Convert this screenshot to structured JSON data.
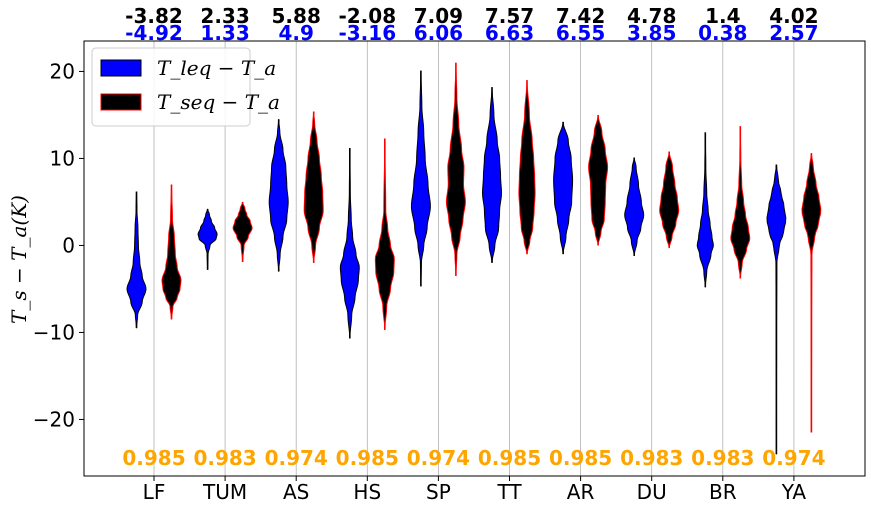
{
  "chart_data": {
    "type": "violin",
    "title": "",
    "xlabel": "",
    "ylabel": "T_s − T_a(K)",
    "ylim": [
      -26.5,
      23.5
    ],
    "yticks": [
      -20,
      -10,
      0,
      10,
      20
    ],
    "grid": "vertical",
    "legend_position": "top-left",
    "categories": [
      "LF",
      "TUM",
      "AS",
      "HS",
      "SP",
      "TT",
      "AR",
      "DU",
      "BR",
      "YA"
    ],
    "series": [
      {
        "name": "T_leq − T_a",
        "color": "#0000ff",
        "edge_color": "#000000",
        "line_color": "#000000",
        "mean_labels": [
          "-3.82",
          "2.33",
          "5.88",
          "-2.08",
          "7.09",
          "7.57",
          "7.42",
          "4.78",
          "1.4",
          "4.02"
        ],
        "label_color": "#000000",
        "distributions": [
          {
            "min": -9.5,
            "max": 6.2,
            "profile": [
              [
                -9.5,
                0
              ],
              [
                -8,
                0.12
              ],
              [
                -6.5,
                0.6
              ],
              [
                -5,
                1
              ],
              [
                -3.5,
                0.6
              ],
              [
                -2,
                0.35
              ],
              [
                0,
                0.2
              ],
              [
                2,
                0.15
              ],
              [
                4,
                0.05
              ],
              [
                6.2,
                0
              ]
            ]
          },
          {
            "min": -2.8,
            "max": 4.2,
            "profile": [
              [
                -2.8,
                0
              ],
              [
                -1,
                0.05
              ],
              [
                0,
                0.25
              ],
              [
                0.8,
                0.9
              ],
              [
                1.3,
                1
              ],
              [
                2,
                0.75
              ],
              [
                2.8,
                0.4
              ],
              [
                3.5,
                0.2
              ],
              [
                4.2,
                0
              ]
            ]
          },
          {
            "min": -3,
            "max": 14.5,
            "profile": [
              [
                -3,
                0
              ],
              [
                -1,
                0.15
              ],
              [
                1,
                0.45
              ],
              [
                3,
                0.85
              ],
              [
                5,
                1
              ],
              [
                7,
                0.85
              ],
              [
                9,
                0.75
              ],
              [
                11,
                0.45
              ],
              [
                13,
                0.12
              ],
              [
                14.5,
                0
              ]
            ]
          },
          {
            "min": -10.7,
            "max": 11.2,
            "profile": [
              [
                -10.7,
                0
              ],
              [
                -8,
                0.2
              ],
              [
                -6,
                0.55
              ],
              [
                -4,
                0.9
              ],
              [
                -2.5,
                1
              ],
              [
                -1,
                0.65
              ],
              [
                1,
                0.3
              ],
              [
                3,
                0.15
              ],
              [
                6,
                0.05
              ],
              [
                11.2,
                0
              ]
            ]
          },
          {
            "min": -4.7,
            "max": 20.1,
            "profile": [
              [
                -4.7,
                0
              ],
              [
                -2,
                0.05
              ],
              [
                0,
                0.3
              ],
              [
                2,
                0.65
              ],
              [
                4.5,
                1
              ],
              [
                7,
                0.75
              ],
              [
                10,
                0.45
              ],
              [
                13,
                0.3
              ],
              [
                16,
                0.1
              ],
              [
                20.1,
                0
              ]
            ]
          },
          {
            "min": -2,
            "max": 18.2,
            "profile": [
              [
                -2,
                0
              ],
              [
                0,
                0.3
              ],
              [
                2,
                0.7
              ],
              [
                4,
                0.8
              ],
              [
                6,
                1
              ],
              [
                8,
                0.9
              ],
              [
                10,
                0.8
              ],
              [
                12,
                0.55
              ],
              [
                15,
                0.2
              ],
              [
                18.2,
                0
              ]
            ]
          },
          {
            "min": -1,
            "max": 14.2,
            "profile": [
              [
                -1,
                0
              ],
              [
                1,
                0.3
              ],
              [
                3,
                0.6
              ],
              [
                5,
                0.9
              ],
              [
                7.5,
                1
              ],
              [
                10,
                0.85
              ],
              [
                12,
                0.55
              ],
              [
                14.2,
                0
              ]
            ]
          },
          {
            "min": -1.2,
            "max": 10.1,
            "profile": [
              [
                -1.2,
                0
              ],
              [
                0.5,
                0.3
              ],
              [
                2,
                0.7
              ],
              [
                3.5,
                1
              ],
              [
                5,
                0.75
              ],
              [
                7,
                0.45
              ],
              [
                9,
                0.2
              ],
              [
                10.1,
                0
              ]
            ]
          },
          {
            "min": -4.8,
            "max": 13,
            "profile": [
              [
                -4.8,
                0
              ],
              [
                -3,
                0.15
              ],
              [
                -1,
                0.6
              ],
              [
                0,
                0.85
              ],
              [
                1,
                0.7
              ],
              [
                2.5,
                0.5
              ],
              [
                4,
                0.3
              ],
              [
                6,
                0.15
              ],
              [
                9,
                0.05
              ],
              [
                13,
                0
              ]
            ]
          },
          {
            "min": -24,
            "max": 9.3,
            "profile": [
              [
                -24,
                0
              ],
              [
                -10,
                0.02
              ],
              [
                -2,
                0.05
              ],
              [
                0,
                0.3
              ],
              [
                1.5,
                0.75
              ],
              [
                3,
                1
              ],
              [
                4.5,
                0.8
              ],
              [
                6,
                0.5
              ],
              [
                7.5,
                0.2
              ],
              [
                9.3,
                0
              ]
            ]
          }
        ]
      },
      {
        "name": "T_seq − T_a",
        "color": "#000000",
        "edge_color": "#ff0000",
        "line_color": "#ff0000",
        "mean_labels": [
          "-4.92",
          "1.33",
          "4.9",
          "-3.16",
          "6.06",
          "6.63",
          "6.55",
          "3.85",
          "0.38",
          "2.57"
        ],
        "label_color": "#0000ff",
        "distributions": [
          {
            "min": -8.5,
            "max": 7,
            "profile": [
              [
                -8.5,
                0
              ],
              [
                -7,
                0.15
              ],
              [
                -6,
                0.6
              ],
              [
                -5,
                0.9
              ],
              [
                -4,
                1
              ],
              [
                -2.5,
                0.6
              ],
              [
                -1,
                0.4
              ],
              [
                1,
                0.3
              ],
              [
                3,
                0.1
              ],
              [
                7,
                0
              ]
            ]
          },
          {
            "min": -1.9,
            "max": 5,
            "profile": [
              [
                -1.9,
                0
              ],
              [
                0,
                0.15
              ],
              [
                1,
                0.6
              ],
              [
                2,
                1
              ],
              [
                2.8,
                0.8
              ],
              [
                3.5,
                0.45
              ],
              [
                4.2,
                0.25
              ],
              [
                5,
                0
              ]
            ]
          },
          {
            "min": -2,
            "max": 15.4,
            "profile": [
              [
                -2,
                0
              ],
              [
                0,
                0.2
              ],
              [
                2,
                0.6
              ],
              [
                4,
                1
              ],
              [
                6,
                0.95
              ],
              [
                8,
                0.8
              ],
              [
                10,
                0.6
              ],
              [
                12,
                0.35
              ],
              [
                14,
                0.1
              ],
              [
                15.4,
                0
              ]
            ]
          },
          {
            "min": -9.7,
            "max": 12.3,
            "profile": [
              [
                -9.7,
                0
              ],
              [
                -7,
                0.2
              ],
              [
                -5,
                0.6
              ],
              [
                -3,
                0.95
              ],
              [
                -1.5,
                1
              ],
              [
                0,
                0.6
              ],
              [
                2,
                0.3
              ],
              [
                4,
                0.1
              ],
              [
                12.3,
                0
              ]
            ]
          },
          {
            "min": -3.5,
            "max": 21,
            "profile": [
              [
                -3.5,
                0
              ],
              [
                -1,
                0.1
              ],
              [
                1,
                0.45
              ],
              [
                3,
                0.75
              ],
              [
                5,
                1
              ],
              [
                7,
                0.8
              ],
              [
                9,
                0.85
              ],
              [
                11,
                0.6
              ],
              [
                14,
                0.3
              ],
              [
                17,
                0.1
              ],
              [
                21,
                0
              ]
            ]
          },
          {
            "min": -1,
            "max": 19,
            "profile": [
              [
                -1,
                0
              ],
              [
                0.5,
                0.3
              ],
              [
                2,
                0.6
              ],
              [
                4,
                0.75
              ],
              [
                6,
                0.85
              ],
              [
                8,
                0.8
              ],
              [
                10,
                0.7
              ],
              [
                12,
                0.55
              ],
              [
                15,
                0.25
              ],
              [
                19,
                0
              ]
            ]
          },
          {
            "min": 0,
            "max": 15,
            "profile": [
              [
                0,
                0
              ],
              [
                1.5,
                0.3
              ],
              [
                3,
                0.65
              ],
              [
                5,
                0.75
              ],
              [
                7,
                0.8
              ],
              [
                9,
                1
              ],
              [
                11,
                0.75
              ],
              [
                13,
                0.4
              ],
              [
                15,
                0
              ]
            ]
          },
          {
            "min": -0.3,
            "max": 10.8,
            "profile": [
              [
                -0.3,
                0
              ],
              [
                1,
                0.3
              ],
              [
                2.5,
                0.7
              ],
              [
                4,
                1
              ],
              [
                5.5,
                0.85
              ],
              [
                7,
                0.6
              ],
              [
                9,
                0.35
              ],
              [
                10.8,
                0
              ]
            ]
          },
          {
            "min": -3.8,
            "max": 13.7,
            "profile": [
              [
                -3.8,
                0
              ],
              [
                -2,
                0.2
              ],
              [
                -0.5,
                0.65
              ],
              [
                0.8,
                1
              ],
              [
                2,
                0.85
              ],
              [
                3.5,
                0.55
              ],
              [
                5,
                0.35
              ],
              [
                7,
                0.15
              ],
              [
                10,
                0.05
              ],
              [
                13.7,
                0
              ]
            ]
          },
          {
            "min": -21.5,
            "max": 10.6,
            "profile": [
              [
                -21.5,
                0
              ],
              [
                -10,
                0.02
              ],
              [
                -1,
                0.05
              ],
              [
                1,
                0.35
              ],
              [
                2.5,
                0.75
              ],
              [
                4,
                1
              ],
              [
                5.5,
                0.8
              ],
              [
                7,
                0.5
              ],
              [
                9,
                0.2
              ],
              [
                10.6,
                0
              ]
            ]
          }
        ]
      }
    ],
    "bottom_labels": [
      "0.985",
      "0.983",
      "0.974",
      "0.985",
      "0.974",
      "0.985",
      "0.985",
      "0.983",
      "0.983",
      "0.974"
    ],
    "bottom_label_color": "#ffa500"
  }
}
